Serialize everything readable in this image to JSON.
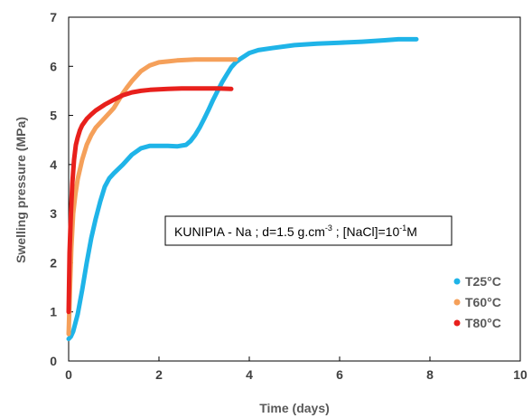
{
  "chart_data": {
    "type": "line",
    "xlabel": "Time (days)",
    "ylabel": "Swelling pressure (MPa)",
    "xlim": [
      0,
      10
    ],
    "ylim": [
      0,
      7
    ],
    "xticks": [
      "0",
      "2",
      "4",
      "6",
      "8",
      "10"
    ],
    "yticks": [
      "0",
      "1",
      "2",
      "3",
      "4",
      "5",
      "6",
      "7"
    ],
    "grid": false,
    "legend_position": "bottom-right",
    "annotation": {
      "prefix": "KUNIPIA - Na ; d=1.5 g.cm",
      "sup1": "-3",
      "middle": " ; [NaCl]=10",
      "sup2": "-1",
      "suffix": "M"
    },
    "series": [
      {
        "name": "T25°C",
        "color": "#1fb4e8",
        "x": [
          0,
          0.05,
          0.1,
          0.2,
          0.3,
          0.4,
          0.5,
          0.6,
          0.7,
          0.8,
          0.9,
          1.0,
          1.2,
          1.4,
          1.6,
          1.8,
          2.0,
          2.2,
          2.4,
          2.6,
          2.7,
          2.8,
          2.9,
          3.0,
          3.1,
          3.2,
          3.3,
          3.4,
          3.5,
          3.6,
          3.7,
          3.8,
          4.0,
          4.2,
          4.5,
          5.0,
          5.5,
          6.0,
          6.5,
          7.0,
          7.3,
          7.5,
          7.7
        ],
        "y": [
          0.45,
          0.5,
          0.6,
          0.95,
          1.45,
          2.0,
          2.5,
          2.9,
          3.25,
          3.55,
          3.72,
          3.82,
          4.0,
          4.2,
          4.33,
          4.38,
          4.38,
          4.38,
          4.37,
          4.4,
          4.48,
          4.6,
          4.75,
          4.93,
          5.12,
          5.32,
          5.5,
          5.68,
          5.83,
          5.98,
          6.08,
          6.15,
          6.27,
          6.33,
          6.37,
          6.43,
          6.46,
          6.48,
          6.5,
          6.53,
          6.55,
          6.55,
          6.55
        ]
      },
      {
        "name": "T60°C",
        "color": "#f5a05a",
        "x": [
          0,
          0.03,
          0.06,
          0.1,
          0.15,
          0.2,
          0.3,
          0.4,
          0.5,
          0.6,
          0.7,
          0.8,
          0.9,
          1.0,
          1.1,
          1.2,
          1.3,
          1.4,
          1.6,
          1.8,
          2.0,
          2.2,
          2.4,
          2.6,
          2.8,
          3.0,
          3.3,
          3.6,
          3.7
        ],
        "y": [
          0.55,
          1.5,
          2.3,
          3.0,
          3.4,
          3.7,
          4.1,
          4.4,
          4.6,
          4.75,
          4.85,
          4.95,
          5.05,
          5.15,
          5.3,
          5.45,
          5.58,
          5.7,
          5.9,
          6.02,
          6.08,
          6.1,
          6.12,
          6.13,
          6.14,
          6.14,
          6.14,
          6.14,
          6.14
        ]
      },
      {
        "name": "T80°C",
        "color": "#e8201c",
        "x": [
          0,
          0.02,
          0.05,
          0.08,
          0.12,
          0.16,
          0.2,
          0.25,
          0.3,
          0.4,
          0.5,
          0.6,
          0.8,
          1.0,
          1.2,
          1.4,
          1.6,
          1.8,
          2.0,
          2.2,
          2.5,
          2.8,
          3.0,
          3.3,
          3.6
        ],
        "y": [
          1.0,
          2.2,
          3.0,
          3.6,
          4.1,
          4.4,
          4.55,
          4.7,
          4.8,
          4.93,
          5.02,
          5.1,
          5.22,
          5.32,
          5.41,
          5.47,
          5.5,
          5.52,
          5.53,
          5.54,
          5.55,
          5.55,
          5.55,
          5.55,
          5.54
        ]
      }
    ]
  }
}
